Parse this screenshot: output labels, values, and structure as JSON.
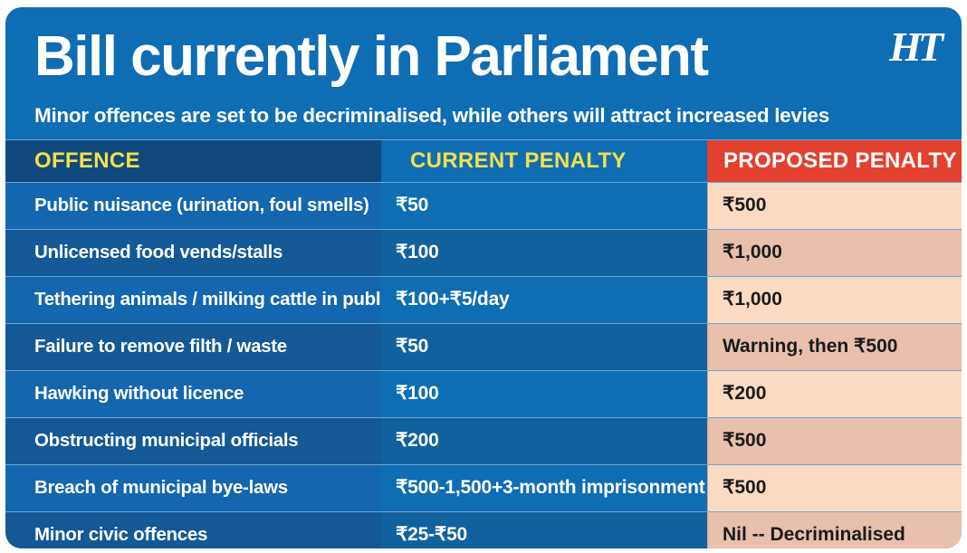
{
  "title": "Bill currently in Parliament",
  "subtitle": "Minor offences are set to be decriminalised, while others will attract increased levies",
  "logo": "HT",
  "headers": {
    "offence": "OFFENCE",
    "current": "CURRENT PENALTY",
    "proposed": "PROPOSED PENALTY"
  },
  "rows": [
    {
      "offence": "Public nuisance (urination, foul smells)",
      "current": "₹50",
      "proposed": "₹500"
    },
    {
      "offence": "Unlicensed food vends/stalls",
      "current": "₹100",
      "proposed": "₹1,000"
    },
    {
      "offence": "Tethering animals / milking cattle in public",
      "current": "₹100+₹5/day",
      "proposed": "₹1,000"
    },
    {
      "offence": "Failure to remove filth / waste",
      "current": "₹50",
      "proposed": "Warning, then ₹500"
    },
    {
      "offence": "Hawking without licence",
      "current": "₹100",
      "proposed": "₹200"
    },
    {
      "offence": "Obstructing municipal officials",
      "current": "₹200",
      "proposed": "₹500"
    },
    {
      "offence": "Breach of municipal bye-laws",
      "current": "₹500-1,500+3-month imprisonment",
      "proposed": "₹500"
    },
    {
      "offence": "Minor civic offences",
      "current": "₹25-₹50",
      "proposed": "Nil -- Decriminalised"
    }
  ],
  "colors": {
    "background": "#0f6db4",
    "header_accent": "#f4e04a",
    "proposed_header": "#e2412f",
    "proposed_cell_light": "#fbdac4",
    "proposed_cell_dark": "#e9bfae"
  }
}
